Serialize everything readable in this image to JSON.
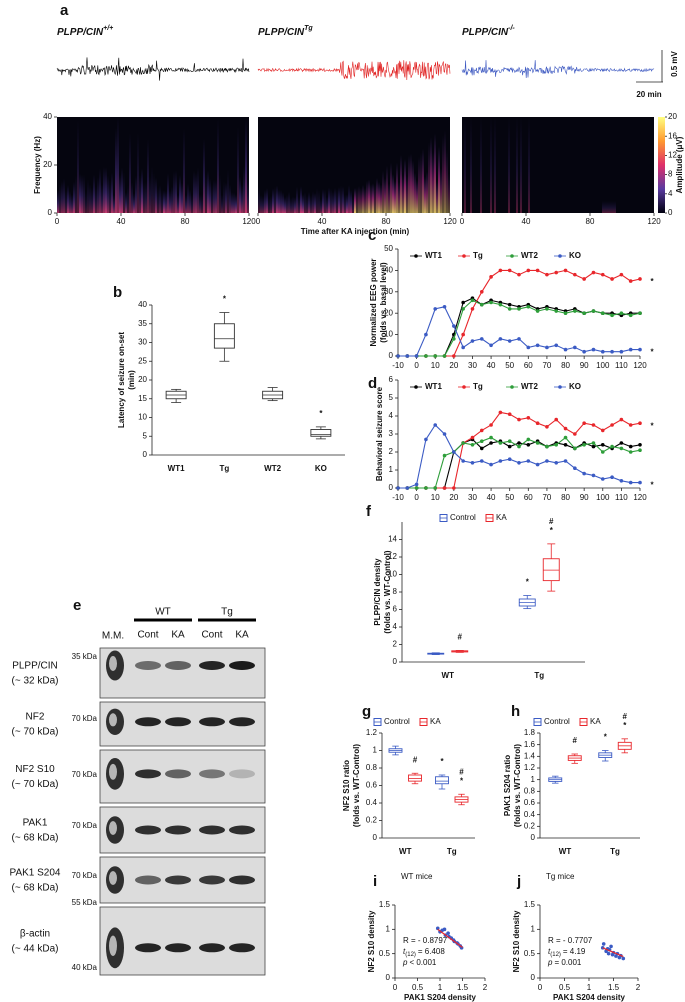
{
  "chart_data": [
    {
      "type": "spectrogram",
      "panel": "a",
      "traces": [
        {
          "label": "PLPP/CIN",
          "sup": "+/+",
          "color": "#000000"
        },
        {
          "label": "PLPP/CIN",
          "sup": "Tg",
          "color": "#e02020"
        },
        {
          "label": "PLPP/CIN",
          "sup": "-/-",
          "color": "#3a56c0"
        }
      ],
      "scale_bar": {
        "y": "0.5 mV",
        "x": "20 min"
      },
      "xlabel": "Time after KA injection (min)",
      "ylabel": "Frequency (Hz)",
      "xlim": [
        0,
        120
      ],
      "xticks": [
        0,
        40,
        80,
        120
      ],
      "ylim": [
        0,
        40
      ],
      "yticks": [
        0,
        20,
        40
      ],
      "colorbar": {
        "label": "Amplitude (μV)",
        "lim": [
          0,
          20
        ],
        "ticks": [
          0,
          4,
          8,
          12,
          16,
          20
        ]
      }
    },
    {
      "type": "box",
      "panel": "b",
      "ylabel": [
        "Latency of seizure on-set",
        "(min)"
      ],
      "categories": [
        "WT1",
        "Tg",
        "WT2",
        "KO"
      ],
      "ylim": [
        0,
        40
      ],
      "yticks": [
        0,
        5,
        10,
        15,
        20,
        25,
        30,
        35,
        40
      ],
      "series": [
        {
          "color": "#333333",
          "values": [
            16,
            31,
            16,
            5.5
          ],
          "q1": [
            15,
            28.5,
            15,
            5
          ],
          "q3": [
            17,
            35,
            17,
            6.8
          ],
          "whisker_low": [
            14,
            25,
            14.5,
            4.3
          ],
          "whisker_high": [
            17.5,
            38,
            18,
            7.5
          ]
        }
      ],
      "annotations": [
        {
          "text": "*",
          "category": "Tg"
        },
        {
          "text": "*",
          "category": "KO"
        }
      ]
    },
    {
      "type": "line",
      "panel": "c",
      "ylabel": [
        "Normalized EEG power",
        "(folds vs. basal level)"
      ],
      "legend": "top",
      "x": [
        -10,
        -5,
        0,
        5,
        10,
        15,
        20,
        25,
        30,
        35,
        40,
        45,
        50,
        55,
        60,
        65,
        70,
        75,
        80,
        85,
        90,
        95,
        100,
        105,
        110,
        115,
        120
      ],
      "xlim": [
        -10,
        120
      ],
      "xticks": [
        -10,
        0,
        10,
        20,
        30,
        40,
        50,
        60,
        70,
        80,
        90,
        100,
        110,
        120
      ],
      "ylim": [
        0,
        50
      ],
      "yticks": [
        0,
        10,
        20,
        30,
        40,
        50
      ],
      "series": [
        {
          "name": "WT1",
          "color": "#000000",
          "values": [
            0,
            0,
            0,
            0,
            0,
            0,
            10,
            25,
            27,
            24,
            26,
            25,
            24,
            23,
            24,
            22,
            23,
            22,
            21,
            22,
            20,
            21,
            20,
            20,
            19,
            20,
            20
          ]
        },
        {
          "name": "Tg",
          "color": "#e8262b",
          "values": [
            0,
            0,
            0,
            0,
            0,
            0,
            0,
            10,
            22,
            30,
            37,
            40,
            40,
            38,
            40,
            40,
            38,
            39,
            40,
            38,
            36,
            39,
            38,
            36,
            38,
            35,
            36
          ]
        },
        {
          "name": "WT2",
          "color": "#2e9e3a",
          "values": [
            0,
            0,
            0,
            0,
            0,
            0,
            8,
            22,
            26,
            24,
            25,
            24,
            22,
            22,
            23,
            21,
            22,
            21,
            20,
            21,
            20,
            21,
            20,
            19,
            20,
            19,
            20
          ]
        },
        {
          "name": "KO",
          "color": "#3b5bc4",
          "values": [
            0,
            0,
            0,
            10,
            22,
            23,
            14,
            4,
            7,
            8,
            5,
            8,
            7,
            8,
            4,
            5,
            4,
            5,
            3,
            4,
            2,
            3,
            2,
            2,
            2,
            3,
            3
          ]
        }
      ],
      "annotations": [
        {
          "text": "*",
          "series": "Tg"
        },
        {
          "text": "*",
          "series": "KO"
        }
      ]
    },
    {
      "type": "line",
      "panel": "d",
      "ylabel": [
        "Behavioral seizure score"
      ],
      "legend": "top",
      "x": [
        -10,
        -5,
        0,
        5,
        10,
        15,
        20,
        25,
        30,
        35,
        40,
        45,
        50,
        55,
        60,
        65,
        70,
        75,
        80,
        85,
        90,
        95,
        100,
        105,
        110,
        115,
        120
      ],
      "xlim": [
        -10,
        120
      ],
      "xticks": [
        -10,
        0,
        10,
        20,
        30,
        40,
        50,
        60,
        70,
        80,
        90,
        100,
        110,
        120
      ],
      "ylim": [
        0,
        6
      ],
      "yticks": [
        0,
        1,
        2,
        3,
        4,
        5,
        6
      ],
      "series": [
        {
          "name": "WT1",
          "color": "#000000",
          "values": [
            0,
            0,
            0,
            0,
            0,
            0,
            2,
            2.5,
            2.7,
            2.2,
            2.5,
            2.6,
            2.3,
            2.5,
            2.4,
            2.6,
            2.3,
            2.5,
            2.4,
            2.2,
            2.5,
            2.3,
            2.4,
            2.2,
            2.5,
            2.3,
            2.4
          ]
        },
        {
          "name": "Tg",
          "color": "#e8262b",
          "values": [
            0,
            0,
            0,
            0,
            0,
            0,
            0,
            2.5,
            2.8,
            3.2,
            3.5,
            4.2,
            4.1,
            3.8,
            3.9,
            3.6,
            3.4,
            3.8,
            3.3,
            3.0,
            3.6,
            3.5,
            3.2,
            3.5,
            3.8,
            3.5,
            3.6
          ]
        },
        {
          "name": "WT2",
          "color": "#2e9e3a",
          "values": [
            0,
            0,
            0,
            0,
            0,
            1.8,
            2.0,
            2.5,
            2.4,
            2.6,
            2.8,
            2.5,
            2.6,
            2.3,
            2.7,
            2.5,
            2.3,
            2.4,
            2.8,
            2.2,
            2.4,
            2.5,
            2.0,
            2.3,
            2.2,
            2.0,
            2.1
          ]
        },
        {
          "name": "KO",
          "color": "#3b5bc4",
          "values": [
            0,
            0,
            0.2,
            2.7,
            3.5,
            3.0,
            2.0,
            1.5,
            1.4,
            1.5,
            1.3,
            1.5,
            1.6,
            1.4,
            1.5,
            1.3,
            1.5,
            1.4,
            1.5,
            1.1,
            0.8,
            0.7,
            0.5,
            0.6,
            0.4,
            0.3,
            0.3
          ]
        }
      ],
      "annotations": [
        {
          "text": "*",
          "series": "Tg"
        },
        {
          "text": "*",
          "series": "KO"
        }
      ]
    },
    {
      "type": "blot",
      "panel": "e",
      "marker_lane": "M.M.",
      "groups": [
        {
          "name": "WT",
          "lanes": [
            "Cont",
            "KA"
          ]
        },
        {
          "name": "Tg",
          "lanes": [
            "Cont",
            "KA"
          ]
        }
      ],
      "rows": [
        {
          "name": "PLPP/CIN",
          "size": "(~ 32 kDa)",
          "markers": [
            "35 kDa"
          ]
        },
        {
          "name": "NF2",
          "size": "(~ 70 kDa)",
          "markers": [
            "70 kDa"
          ]
        },
        {
          "name": "NF2 S10",
          "size": "(~ 70 kDa)",
          "markers": [
            "70 kDa"
          ]
        },
        {
          "name": "PAK1",
          "size": "(~ 68 kDa)",
          "markers": [
            "70 kDa"
          ]
        },
        {
          "name": "PAK1 S204",
          "size": "(~ 68 kDa)",
          "markers": [
            "70 kDa"
          ]
        },
        {
          "name": "β-actin",
          "size": "(~ 44 kDa)",
          "markers": [
            "55 kDa",
            "40 kDa"
          ]
        }
      ]
    },
    {
      "type": "box",
      "panel": "f",
      "ylabel": [
        "PLPP/CIN density",
        "(folds vs. WT-Control)"
      ],
      "categories": [
        "WT",
        "Tg"
      ],
      "ylim": [
        0,
        16
      ],
      "yticks": [
        0,
        2,
        4,
        6,
        8,
        10,
        12,
        14
      ],
      "series": [
        {
          "name": "Control",
          "color": "#3b5bc4",
          "values": [
            0.95,
            6.8
          ],
          "q1": [
            0.9,
            6.4
          ],
          "q3": [
            1.0,
            7.2
          ],
          "whisker_low": [
            0.85,
            6.1
          ],
          "whisker_high": [
            1.05,
            7.6
          ]
        },
        {
          "name": "KA",
          "color": "#e8262b",
          "values": [
            1.2,
            10.5
          ],
          "q1": [
            1.15,
            9.3
          ],
          "q3": [
            1.28,
            11.8
          ],
          "whisker_low": [
            1.1,
            8.1
          ],
          "whisker_high": [
            1.32,
            13.5
          ]
        }
      ],
      "annotations": [
        {
          "text": "#",
          "category": "WT",
          "series": "KA"
        },
        {
          "text": "*",
          "category": "Tg",
          "series": "Control"
        },
        {
          "text": "*",
          "category": "Tg",
          "series": "KA"
        },
        {
          "text": "#",
          "category": "Tg",
          "series": "KA"
        }
      ]
    },
    {
      "type": "box",
      "panel": "g",
      "ylabel": [
        "NF2 S10 ratio",
        "(folds vs. WT-Control)"
      ],
      "categories": [
        "WT",
        "Tg"
      ],
      "ylim": [
        0,
        1.2
      ],
      "yticks": [
        0,
        0.2,
        0.4,
        0.6,
        0.8,
        1,
        1.2
      ],
      "series": [
        {
          "name": "Control",
          "color": "#3b5bc4",
          "values": [
            1.0,
            0.65
          ],
          "q1": [
            0.98,
            0.62
          ],
          "q3": [
            1.02,
            0.7
          ],
          "whisker_low": [
            0.95,
            0.56
          ],
          "whisker_high": [
            1.05,
            0.72
          ]
        },
        {
          "name": "KA",
          "color": "#e8262b",
          "values": [
            0.68,
            0.44
          ],
          "q1": [
            0.65,
            0.41
          ],
          "q3": [
            0.72,
            0.47
          ],
          "whisker_low": [
            0.62,
            0.38
          ],
          "whisker_high": [
            0.74,
            0.5
          ]
        }
      ],
      "annotations": [
        {
          "text": "#",
          "category": "WT",
          "series": "KA"
        },
        {
          "text": "*",
          "category": "Tg",
          "series": "Control"
        },
        {
          "text": "*",
          "category": "Tg",
          "series": "KA"
        },
        {
          "text": "#",
          "category": "Tg",
          "series": "KA"
        }
      ]
    },
    {
      "type": "box",
      "panel": "h",
      "ylabel": [
        "PAK1 S204 ratio",
        "(folds vs. WT-Control)"
      ],
      "categories": [
        "WT",
        "Tg"
      ],
      "ylim": [
        0,
        1.8
      ],
      "yticks": [
        0,
        0.2,
        0.4,
        0.6,
        0.8,
        1,
        1.2,
        1.4,
        1.6,
        1.8
      ],
      "series": [
        {
          "name": "Control",
          "color": "#3b5bc4",
          "values": [
            1.0,
            1.42
          ],
          "q1": [
            0.97,
            1.38
          ],
          "q3": [
            1.03,
            1.46
          ],
          "whisker_low": [
            0.94,
            1.32
          ],
          "whisker_high": [
            1.06,
            1.5
          ]
        },
        {
          "name": "KA",
          "color": "#e8262b",
          "values": [
            1.37,
            1.58
          ],
          "q1": [
            1.33,
            1.52
          ],
          "q3": [
            1.41,
            1.64
          ],
          "whisker_low": [
            1.28,
            1.46
          ],
          "whisker_high": [
            1.44,
            1.7
          ]
        }
      ],
      "annotations": [
        {
          "text": "#",
          "category": "WT",
          "series": "KA"
        },
        {
          "text": "*",
          "category": "Tg",
          "series": "Control"
        },
        {
          "text": "*",
          "category": "Tg",
          "series": "KA"
        },
        {
          "text": "#",
          "category": "Tg",
          "series": "KA"
        }
      ]
    },
    {
      "type": "scatter",
      "panel": "i",
      "title": "WT mice",
      "xlabel": "PAK1 S204 density",
      "ylabel": [
        "NF2 S10 density"
      ],
      "xlim": [
        0,
        2
      ],
      "xticks": [
        0,
        0.5,
        1,
        1.5,
        2
      ],
      "ylim": [
        0,
        1.5
      ],
      "yticks": [
        0,
        0.5,
        1,
        1.5
      ],
      "color": "#3b5bc4",
      "x": [
        0.95,
        1.0,
        1.05,
        1.1,
        1.12,
        1.18,
        1.2,
        1.25,
        1.3,
        1.32,
        1.38,
        1.4,
        1.45,
        1.48
      ],
      "y": [
        1.02,
        0.95,
        0.98,
        1.0,
        0.88,
        0.92,
        0.85,
        0.82,
        0.78,
        0.75,
        0.72,
        0.7,
        0.66,
        0.62
      ],
      "trendline": {
        "color": "#e8262b",
        "x": [
          0.95,
          1.5
        ],
        "y": [
          1.0,
          0.63
        ]
      },
      "stats": {
        "r": "R = - 0.8797",
        "t": "t",
        "df": "(12)",
        "t_value": "= 6.408",
        "p": "p",
        "p_value": "< 0.001"
      }
    },
    {
      "type": "scatter",
      "panel": "j",
      "title": "Tg mice",
      "xlabel": "PAK1 S204 density",
      "ylabel": [
        "NF2 S10 density"
      ],
      "xlim": [
        0,
        2
      ],
      "xticks": [
        0,
        0.5,
        1,
        1.5,
        2
      ],
      "ylim": [
        0,
        1.5
      ],
      "yticks": [
        0,
        0.5,
        1,
        1.5
      ],
      "color": "#3b5bc4",
      "x": [
        1.28,
        1.3,
        1.35,
        1.38,
        1.4,
        1.42,
        1.45,
        1.48,
        1.5,
        1.55,
        1.58,
        1.62,
        1.65,
        1.7
      ],
      "y": [
        0.62,
        0.7,
        0.55,
        0.6,
        0.5,
        0.58,
        0.65,
        0.48,
        0.52,
        0.45,
        0.5,
        0.42,
        0.46,
        0.4
      ],
      "trendline": {
        "color": "#e8262b",
        "x": [
          1.28,
          1.7
        ],
        "y": [
          0.62,
          0.44
        ]
      },
      "stats": {
        "r": "R = - 0.7707",
        "t": "t",
        "df": "(12)",
        "t_value": "= 4.19",
        "p": "p",
        "p_value": "= 0.001"
      }
    }
  ]
}
